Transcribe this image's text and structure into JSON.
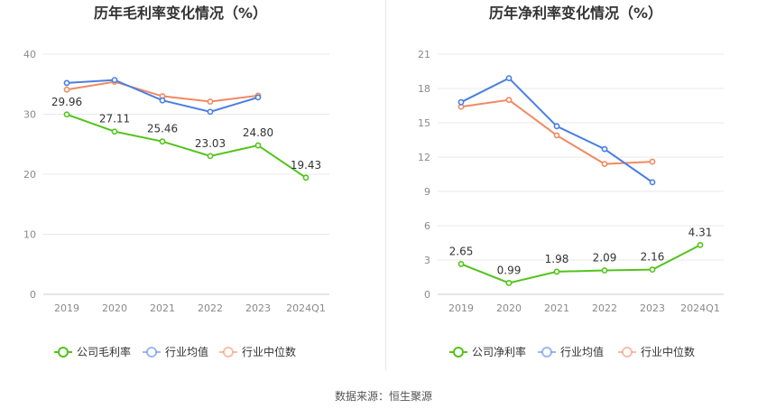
{
  "colors": {
    "company": "#52c41a",
    "industry_avg": "#4a7fe0",
    "industry_median": "#ef8a62",
    "grid": "#e8e8e8",
    "axis": "#cccccc"
  },
  "chart_data": [
    {
      "type": "line",
      "title": "历年毛利率变化情况（%）",
      "categories": [
        "2019",
        "2020",
        "2021",
        "2022",
        "2023",
        "2024Q1"
      ],
      "ylim": [
        0,
        40
      ],
      "yticks": [
        0,
        10,
        20,
        30,
        40
      ],
      "grid": true,
      "legend_position": "bottom",
      "series": [
        {
          "name": "公司毛利率",
          "color_key": "company",
          "labels": true,
          "values": [
            29.96,
            27.11,
            25.46,
            23.03,
            24.8,
            19.43
          ],
          "label_text": [
            "29.96",
            "27.11",
            "25.46",
            "23.03",
            "24.80",
            "19.43"
          ]
        },
        {
          "name": "行业均值",
          "color_key": "industry_avg",
          "labels": false,
          "values": [
            35.2,
            35.7,
            32.3,
            30.4,
            32.8,
            null
          ]
        },
        {
          "name": "行业中位数",
          "color_key": "industry_median",
          "labels": false,
          "values": [
            34.1,
            35.4,
            33.0,
            32.1,
            33.1,
            null
          ]
        }
      ]
    },
    {
      "type": "line",
      "title": "历年净利率变化情况（%）",
      "categories": [
        "2019",
        "2020",
        "2021",
        "2022",
        "2023",
        "2024Q1"
      ],
      "ylim": [
        0,
        21
      ],
      "yticks": [
        0,
        3,
        6,
        9,
        12,
        15,
        18,
        21
      ],
      "grid": true,
      "legend_position": "bottom",
      "series": [
        {
          "name": "公司净利率",
          "color_key": "company",
          "labels": true,
          "values": [
            2.65,
            0.99,
            1.98,
            2.09,
            2.16,
            4.31
          ],
          "label_text": [
            "2.65",
            "0.99",
            "1.98",
            "2.09",
            "2.16",
            "4.31"
          ]
        },
        {
          "name": "行业均值",
          "color_key": "industry_avg",
          "labels": false,
          "values": [
            16.8,
            18.9,
            14.7,
            12.7,
            9.8,
            null
          ]
        },
        {
          "name": "行业中位数",
          "color_key": "industry_median",
          "labels": false,
          "values": [
            16.4,
            17.0,
            13.9,
            11.4,
            11.6,
            null
          ]
        }
      ]
    }
  ],
  "source_text": "数据来源：恒生聚源"
}
